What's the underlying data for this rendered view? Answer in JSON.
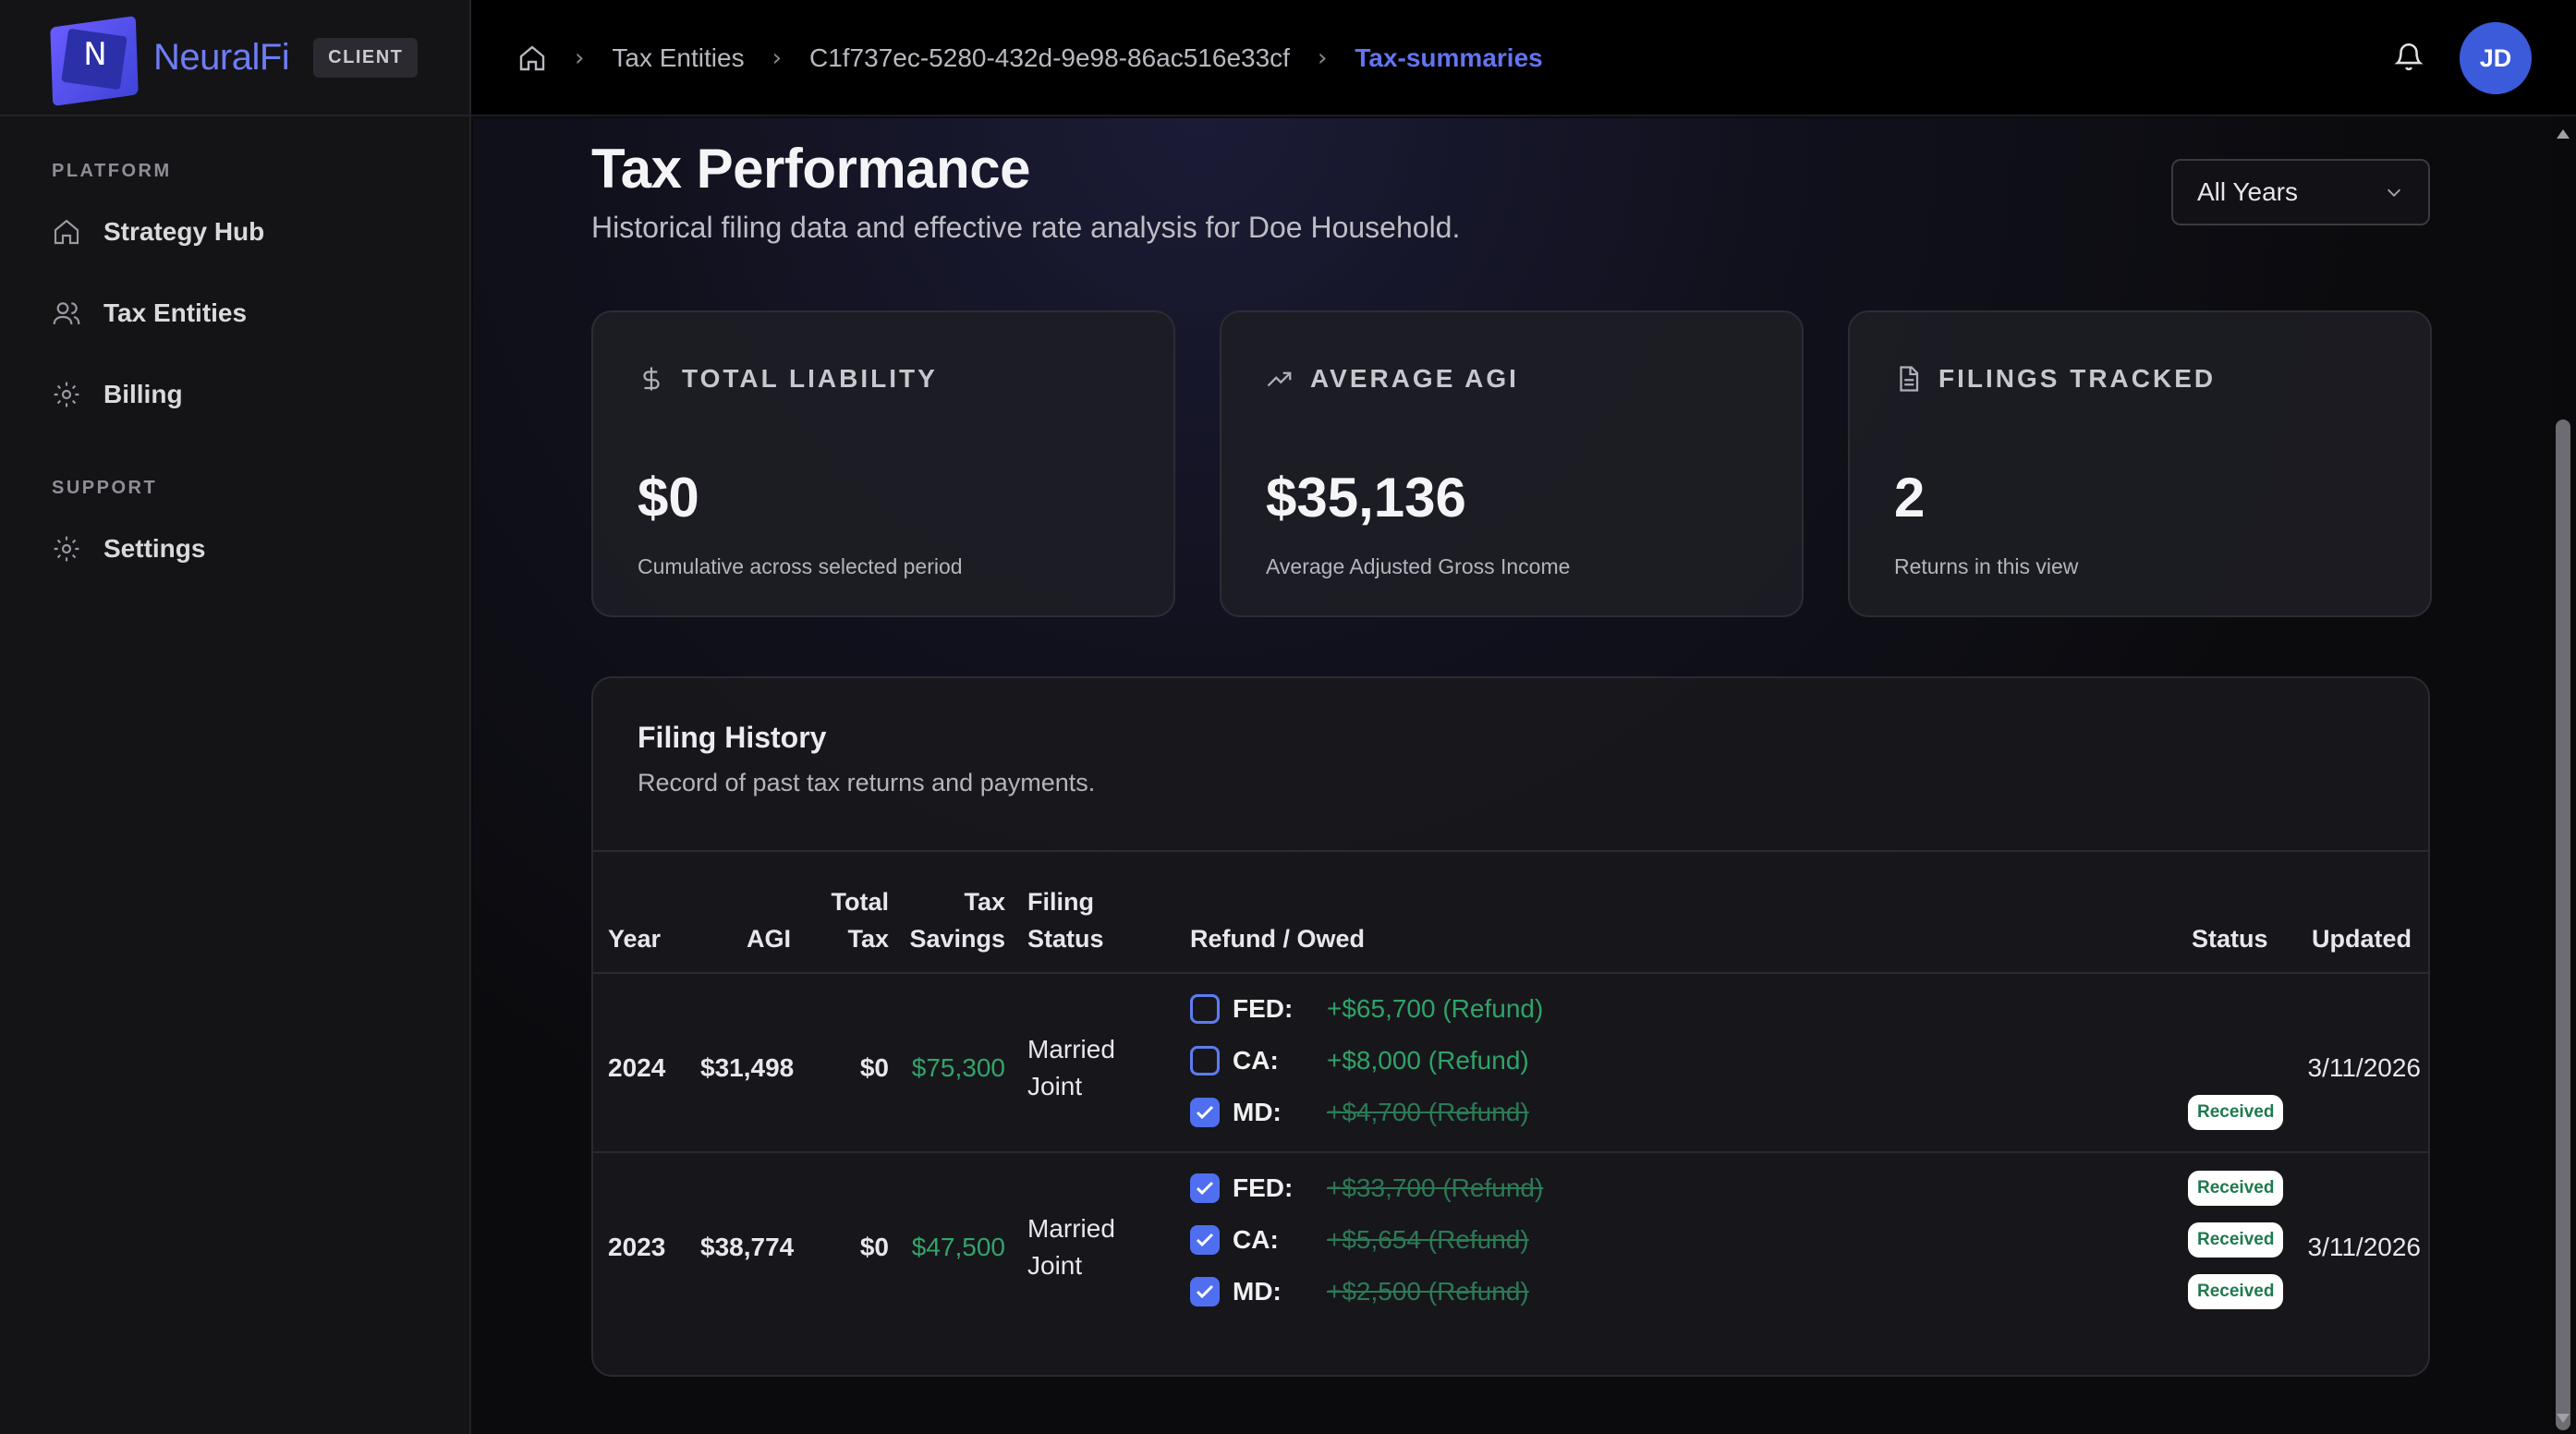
{
  "app": {
    "name": "NeuralFi",
    "role_badge": "CLIENT"
  },
  "sidebar": {
    "sections": [
      {
        "title": "PLATFORM",
        "items": [
          {
            "label": "Strategy Hub",
            "icon": "home-icon"
          },
          {
            "label": "Tax Entities",
            "icon": "users-icon"
          },
          {
            "label": "Billing",
            "icon": "gear-icon"
          }
        ]
      },
      {
        "title": "SUPPORT",
        "items": [
          {
            "label": "Settings",
            "icon": "gear-icon"
          }
        ]
      }
    ]
  },
  "breadcrumb": {
    "items": [
      "Tax Entities",
      "C1f737ec-5280-432d-9e98-86ac516e33cf",
      "Tax-summaries"
    ]
  },
  "user": {
    "initials": "JD"
  },
  "page": {
    "title": "Tax Performance",
    "subtitle": "Historical filing data and effective rate analysis for Doe Household.",
    "year_filter": "All Years"
  },
  "cards": [
    {
      "title": "TOTAL LIABILITY",
      "icon": "dollar-icon",
      "value": "$0",
      "caption": "Cumulative across selected period"
    },
    {
      "title": "AVERAGE AGI",
      "icon": "trending-up-icon",
      "value": "$35,136",
      "caption": "Average Adjusted Gross Income"
    },
    {
      "title": "FILINGS TRACKED",
      "icon": "document-icon",
      "value": "2",
      "caption": "Returns in this view"
    }
  ],
  "history": {
    "title": "Filing History",
    "subtitle": "Record of past tax returns and payments.",
    "columns": {
      "year": "Year",
      "agi": "AGI",
      "total_tax_1": "Total",
      "total_tax_2": "Tax",
      "tax_savings_1": "Tax",
      "tax_savings_2": "Savings",
      "filing_status_1": "Filing",
      "filing_status_2": "Status",
      "refund": "Refund / Owed",
      "status": "Status",
      "updated": "Updated"
    },
    "rows": [
      {
        "year": "2024",
        "agi": "$31,498",
        "total_tax": "$0",
        "tax_savings": "$75,300",
        "filing_status_1": "Married",
        "filing_status_2": "Joint",
        "updated": "3/11/2026",
        "jurisdictions": [
          {
            "code": "FED:",
            "amount": "+$65,700 (Refund)",
            "checked": false,
            "status": ""
          },
          {
            "code": "CA:",
            "amount": "+$8,000 (Refund)",
            "checked": false,
            "status": ""
          },
          {
            "code": "MD:",
            "amount": "+$4,700 (Refund)",
            "checked": true,
            "status": "Received"
          }
        ]
      },
      {
        "year": "2023",
        "agi": "$38,774",
        "total_tax": "$0",
        "tax_savings": "$47,500",
        "filing_status_1": "Married",
        "filing_status_2": "Joint",
        "updated": "3/11/2026",
        "jurisdictions": [
          {
            "code": "FED:",
            "amount": "+$33,700 (Refund)",
            "checked": true,
            "status": "Received"
          },
          {
            "code": "CA:",
            "amount": "+$5,654 (Refund)",
            "checked": true,
            "status": "Received"
          },
          {
            "code": "MD:",
            "amount": "+$2,500 (Refund)",
            "checked": true,
            "status": "Received"
          }
        ]
      }
    ]
  },
  "colors": {
    "accent": "#6474f0",
    "positive": "#34a46a",
    "avatar": "#3b5bdb"
  }
}
